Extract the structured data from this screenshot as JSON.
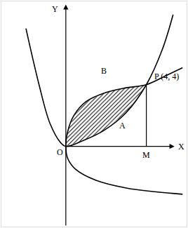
{
  "chart_data": {
    "type": "line",
    "color": "#000000",
    "xlim": [
      -3.2,
      6.0
    ],
    "ylim": [
      -5.2,
      9.4
    ],
    "xticks": [],
    "yticks": [],
    "tick_labels": false,
    "grid": false,
    "series": [
      {
        "x": [
          -1.98,
          -1.33,
          -0.79,
          -0.25,
          0,
          0.83,
          1.91,
          2.99,
          4,
          4.79,
          5.33
        ],
        "y": [
          7.64,
          4.0,
          1.5,
          0.23,
          0,
          0.36,
          1.05,
          2.18,
          4,
          6.27,
          8.55
        ]
      },
      {
        "x": [
          5.8,
          4.5,
          3,
          1.5,
          0.5,
          0.1,
          0,
          0.1,
          0.4,
          1,
          2,
          3,
          4,
          5,
          5.8
        ],
        "y": [
          -3.1,
          -2.95,
          -2.7,
          -2.2,
          -1.5,
          -0.8,
          0,
          1,
          2,
          2.9,
          3.5,
          3.8,
          4,
          4.6,
          5.1
        ]
      }
    ],
    "shaded": {
      "x": [
        0,
        0.1,
        0.4,
        1,
        2,
        3,
        4,
        2.99,
        1.91,
        0.83,
        0
      ],
      "y": [
        0,
        1,
        2,
        2.9,
        3.5,
        3.8,
        4,
        2.18,
        1.05,
        0.36,
        0
      ]
    },
    "segment": {
      "x": [
        4,
        4
      ],
      "y": [
        4,
        0
      ]
    },
    "axes": {
      "x_end": 5.4,
      "y_end": 9.2
    },
    "annotations": [
      {
        "text": "Y",
        "x": -0.55,
        "y": 8.9
      },
      {
        "text": "X",
        "x": 5.75,
        "y": 0
      },
      {
        "text": "O",
        "x": -0.3,
        "y": -0.4
      },
      {
        "text": "M",
        "x": 4,
        "y": -0.55
      },
      {
        "text": "A",
        "x": 2.8,
        "y": 1.36
      },
      {
        "text": "B",
        "x": 1.9,
        "y": 4.9
      },
      {
        "text": "P (4, 4)",
        "x": 5.0,
        "y": 4.55
      }
    ]
  }
}
